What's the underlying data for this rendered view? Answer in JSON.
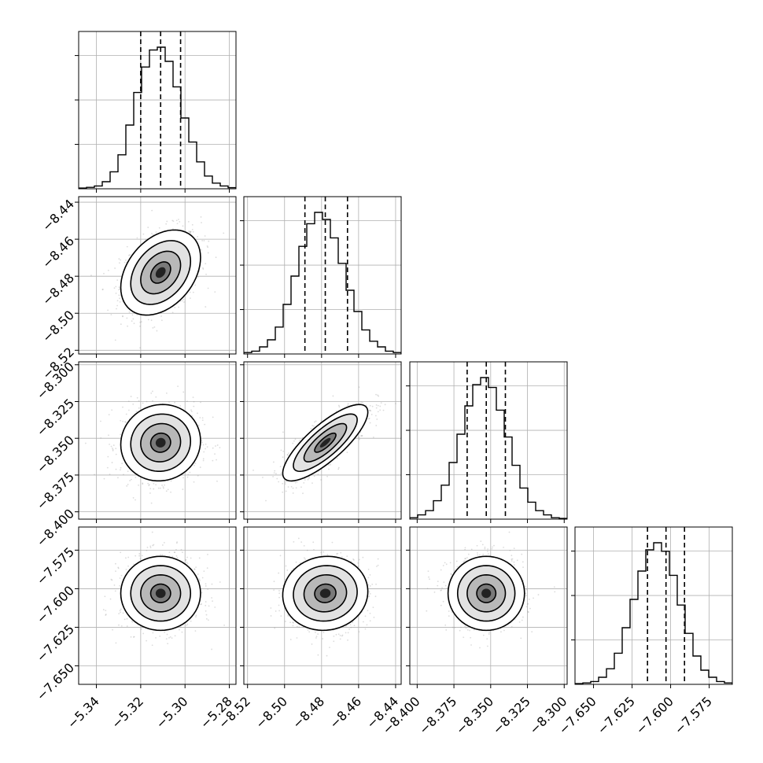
{
  "chart_data": {
    "type": "corner",
    "title": "",
    "grid": true,
    "quantiles": [
      0.16,
      0.5,
      0.84
    ],
    "params": [
      {
        "label": "",
        "range": [
          -5.348,
          -5.277
        ],
        "ticks": [
          -5.34,
          -5.32,
          -5.3,
          -5.28
        ],
        "tick_labels": [
          "−5.34",
          "−5.32",
          "−5.30",
          "−5.28"
        ],
        "quantile_values": [
          -5.32,
          -5.311,
          -5.302
        ],
        "hist": [
          0.005,
          0.01,
          0.02,
          0.05,
          0.12,
          0.24,
          0.45,
          0.68,
          0.86,
          0.98,
          1.0,
          0.9,
          0.72,
          0.5,
          0.33,
          0.19,
          0.09,
          0.04,
          0.02,
          0.008
        ]
      },
      {
        "label": "",
        "range": [
          -8.522,
          -8.437
        ],
        "ticks": [
          -8.52,
          -8.5,
          -8.48,
          -8.46,
          -8.44
        ],
        "tick_labels": [
          "−8.52",
          "−8.50",
          "−8.48",
          "−8.46",
          "−8.44"
        ],
        "quantile_values": [
          -8.489,
          -8.478,
          -8.466
        ],
        "hist": [
          0.01,
          0.02,
          0.05,
          0.1,
          0.19,
          0.35,
          0.55,
          0.76,
          0.92,
          1.0,
          0.95,
          0.82,
          0.64,
          0.45,
          0.3,
          0.17,
          0.09,
          0.05,
          0.02,
          0.01
        ]
      },
      {
        "label": "",
        "range": [
          -8.405,
          -8.298
        ],
        "ticks": [
          -8.4,
          -8.375,
          -8.35,
          -8.325,
          -8.3
        ],
        "tick_labels": [
          "−8.400",
          "−8.375",
          "−8.350",
          "−8.325",
          "−8.300"
        ],
        "quantile_values": [
          -8.366,
          -8.353,
          -8.34
        ],
        "hist": [
          0.01,
          0.03,
          0.06,
          0.13,
          0.24,
          0.4,
          0.6,
          0.8,
          0.95,
          1.0,
          0.93,
          0.77,
          0.58,
          0.38,
          0.22,
          0.12,
          0.06,
          0.03,
          0.01,
          0.005
        ]
      },
      {
        "label": "",
        "range": [
          -7.662,
          -7.56
        ],
        "ticks": [
          -7.65,
          -7.625,
          -7.6,
          -7.575
        ],
        "tick_labels": [
          "−7.650",
          "−7.625",
          "−7.600",
          "−7.575"
        ],
        "quantile_values": [
          -7.615,
          -7.603,
          -7.591
        ],
        "hist": [
          0.005,
          0.01,
          0.02,
          0.05,
          0.11,
          0.22,
          0.4,
          0.6,
          0.8,
          0.95,
          1.0,
          0.94,
          0.77,
          0.56,
          0.36,
          0.2,
          0.1,
          0.05,
          0.02,
          0.01
        ]
      }
    ],
    "correlations": [
      [
        1.0,
        0.35,
        0.05,
        0.0
      ],
      [
        0.35,
        1.0,
        0.8,
        0.05
      ],
      [
        0.05,
        0.8,
        1.0,
        0.0
      ],
      [
        0.0,
        0.05,
        0.0,
        1.0
      ]
    ],
    "contour_levels_sigma": [
      0.5,
      1.0,
      1.5,
      2.0
    ]
  }
}
